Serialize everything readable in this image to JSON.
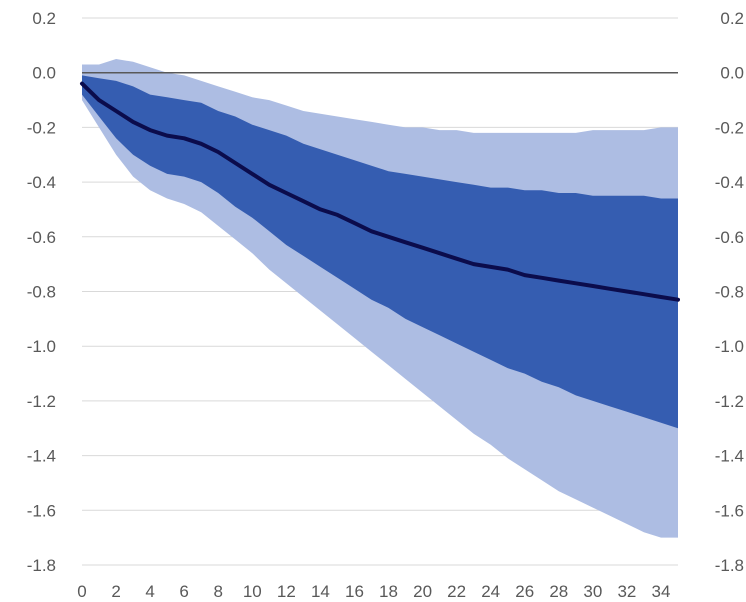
{
  "chart_data": {
    "type": "area",
    "title": "",
    "xlabel": "",
    "ylabel": "",
    "ylim": [
      -1.8,
      0.2
    ],
    "xlim": [
      0,
      35
    ],
    "y_ticks": [
      "0.2",
      "0.0",
      "-0.2",
      "-0.4",
      "-0.6",
      "-0.8",
      "-1.0",
      "-1.2",
      "-1.4",
      "-1.6",
      "-1.8"
    ],
    "x_ticks": [
      "0",
      "2",
      "4",
      "6",
      "8",
      "10",
      "12",
      "14",
      "16",
      "18",
      "20",
      "22",
      "24",
      "26",
      "28",
      "30",
      "32",
      "34"
    ],
    "grid": true,
    "legend": "none",
    "colors": {
      "outer_band": "#adbde3",
      "inner_band": "#355db1",
      "median": "#0b0c4c",
      "zero_line": "#595959",
      "grid": "#d9d9d9"
    },
    "x": [
      0,
      1,
      2,
      3,
      4,
      5,
      6,
      7,
      8,
      9,
      10,
      11,
      12,
      13,
      14,
      15,
      16,
      17,
      18,
      19,
      20,
      21,
      22,
      23,
      24,
      25,
      26,
      27,
      28,
      29,
      30,
      31,
      32,
      33,
      34,
      35
    ],
    "series": [
      {
        "role": "outer_band_upper",
        "values": [
          0.03,
          0.03,
          0.05,
          0.04,
          0.02,
          0.0,
          -0.01,
          -0.03,
          -0.05,
          -0.07,
          -0.09,
          -0.1,
          -0.12,
          -0.14,
          -0.15,
          -0.16,
          -0.17,
          -0.18,
          -0.19,
          -0.2,
          -0.2,
          -0.21,
          -0.21,
          -0.22,
          -0.22,
          -0.22,
          -0.22,
          -0.22,
          -0.22,
          -0.22,
          -0.21,
          -0.21,
          -0.21,
          -0.21,
          -0.2,
          -0.2
        ]
      },
      {
        "role": "inner_band_upper",
        "values": [
          -0.01,
          -0.02,
          -0.03,
          -0.05,
          -0.08,
          -0.09,
          -0.1,
          -0.11,
          -0.14,
          -0.16,
          -0.19,
          -0.21,
          -0.23,
          -0.26,
          -0.28,
          -0.3,
          -0.32,
          -0.34,
          -0.36,
          -0.37,
          -0.38,
          -0.39,
          -0.4,
          -0.41,
          -0.42,
          -0.42,
          -0.43,
          -0.43,
          -0.44,
          -0.44,
          -0.45,
          -0.45,
          -0.45,
          -0.45,
          -0.46,
          -0.46
        ]
      },
      {
        "role": "median",
        "values": [
          -0.04,
          -0.1,
          -0.14,
          -0.18,
          -0.21,
          -0.23,
          -0.24,
          -0.26,
          -0.29,
          -0.33,
          -0.37,
          -0.41,
          -0.44,
          -0.47,
          -0.5,
          -0.52,
          -0.55,
          -0.58,
          -0.6,
          -0.62,
          -0.64,
          -0.66,
          -0.68,
          -0.7,
          -0.71,
          -0.72,
          -0.74,
          -0.75,
          -0.76,
          -0.77,
          -0.78,
          -0.79,
          -0.8,
          -0.81,
          -0.82,
          -0.83
        ]
      },
      {
        "role": "inner_band_lower",
        "values": [
          -0.08,
          -0.16,
          -0.24,
          -0.3,
          -0.34,
          -0.37,
          -0.38,
          -0.4,
          -0.44,
          -0.49,
          -0.53,
          -0.58,
          -0.63,
          -0.67,
          -0.71,
          -0.75,
          -0.79,
          -0.83,
          -0.86,
          -0.9,
          -0.93,
          -0.96,
          -0.99,
          -1.02,
          -1.05,
          -1.08,
          -1.1,
          -1.13,
          -1.15,
          -1.18,
          -1.2,
          -1.22,
          -1.24,
          -1.26,
          -1.28,
          -1.3
        ]
      },
      {
        "role": "outer_band_lower",
        "values": [
          -0.1,
          -0.2,
          -0.3,
          -0.38,
          -0.43,
          -0.46,
          -0.48,
          -0.51,
          -0.56,
          -0.61,
          -0.66,
          -0.72,
          -0.77,
          -0.82,
          -0.87,
          -0.92,
          -0.97,
          -1.02,
          -1.07,
          -1.12,
          -1.17,
          -1.22,
          -1.27,
          -1.32,
          -1.36,
          -1.41,
          -1.45,
          -1.49,
          -1.53,
          -1.56,
          -1.59,
          -1.62,
          -1.65,
          -1.68,
          -1.7,
          -1.7
        ]
      }
    ]
  }
}
